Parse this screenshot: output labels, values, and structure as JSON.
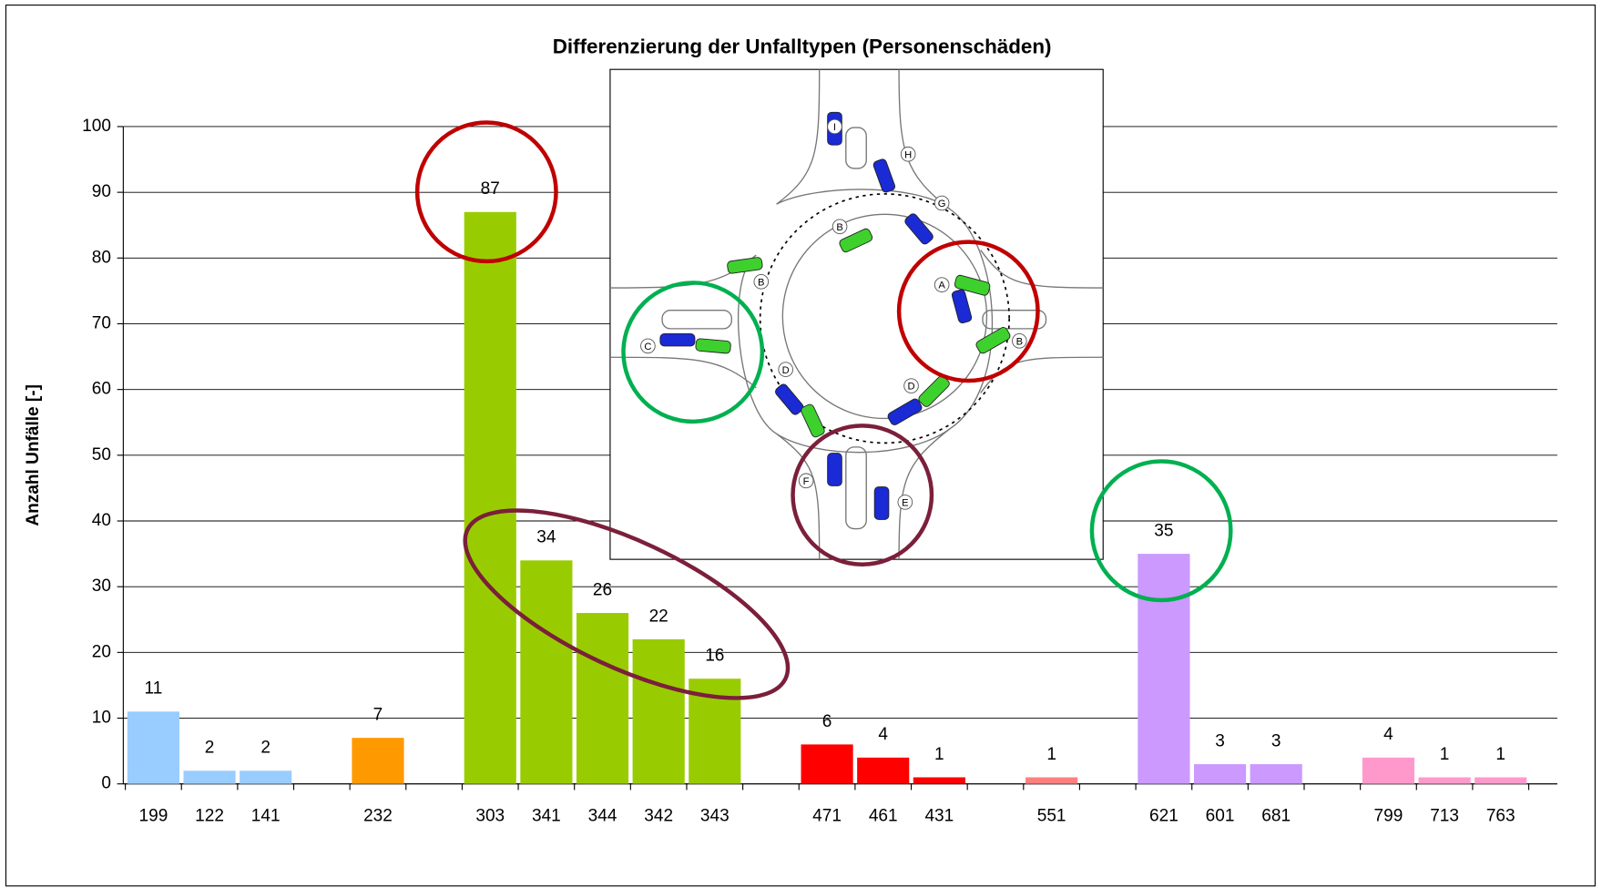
{
  "chart_data": {
    "type": "bar",
    "title": "Differenzierung der Unfalltypen (Personenschäden)",
    "y_label": "Anzahl Unfälle [-]",
    "categories": [
      "199",
      "122",
      "141",
      null,
      "232",
      null,
      "303",
      "341",
      "344",
      "342",
      "343",
      null,
      "471",
      "461",
      "431",
      null,
      "551",
      null,
      "621",
      "601",
      "681",
      null,
      "799",
      "713",
      "763"
    ],
    "values": [
      11,
      2,
      2,
      null,
      7,
      null,
      87,
      34,
      26,
      22,
      16,
      null,
      6,
      4,
      1,
      null,
      1,
      null,
      35,
      3,
      3,
      null,
      4,
      1,
      1
    ],
    "colors": [
      "#99ccff",
      "#99ccff",
      "#99ccff",
      null,
      "#ff9900",
      null,
      "#99cc00",
      "#99cc00",
      "#99cc00",
      "#99cc00",
      "#99cc00",
      null,
      "#ff0000",
      "#ff0000",
      "#ff0000",
      null,
      "#ff7f7f",
      null,
      "#cc99ff",
      "#cc99ff",
      "#cc99ff",
      null,
      "#ff99cc",
      "#ff99cc",
      "#ff99cc"
    ],
    "ylim": [
      0,
      100
    ],
    "yticks": [
      0,
      10,
      20,
      30,
      40,
      50,
      60,
      70,
      80,
      90,
      100
    ],
    "grid": true,
    "annotations": [
      "I",
      "H",
      "G",
      "B",
      "B",
      "A",
      "B",
      "C",
      "D",
      "D",
      "F",
      "E"
    ]
  }
}
